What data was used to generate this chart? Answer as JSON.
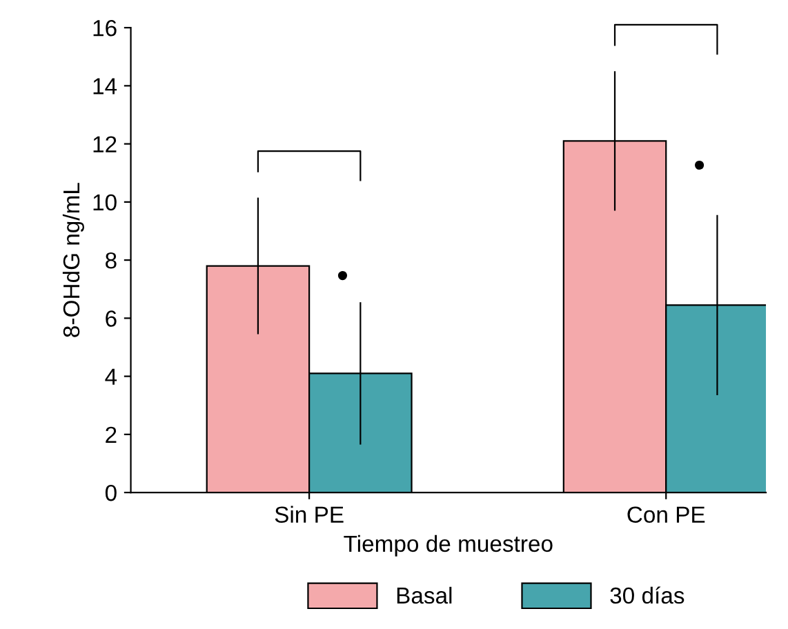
{
  "chart_data": {
    "type": "bar",
    "xlabel": "Tiempo de muestreo",
    "ylabel": "8-OHdG ng/mL",
    "categories": [
      "Sin PE",
      "Con PE"
    ],
    "series": [
      {
        "name": "Basal",
        "color": "#f4a9ab",
        "values": [
          7.8,
          12.1
        ],
        "errors": [
          2.35,
          2.4
        ]
      },
      {
        "name": "30 días",
        "color": "#47a5ad",
        "values": [
          4.1,
          6.45
        ],
        "errors": [
          2.45,
          3.1
        ]
      }
    ],
    "ylim": [
      0,
      16
    ],
    "yticks": [
      0,
      2,
      4,
      6,
      8,
      10,
      12,
      14,
      16
    ],
    "grid": false,
    "legend": "bottom",
    "annotations": [
      {
        "text": "●",
        "x": "Sin PE",
        "y": 7.45
      },
      {
        "text": "●",
        "x": "Con PE",
        "y": 11.25
      }
    ]
  }
}
